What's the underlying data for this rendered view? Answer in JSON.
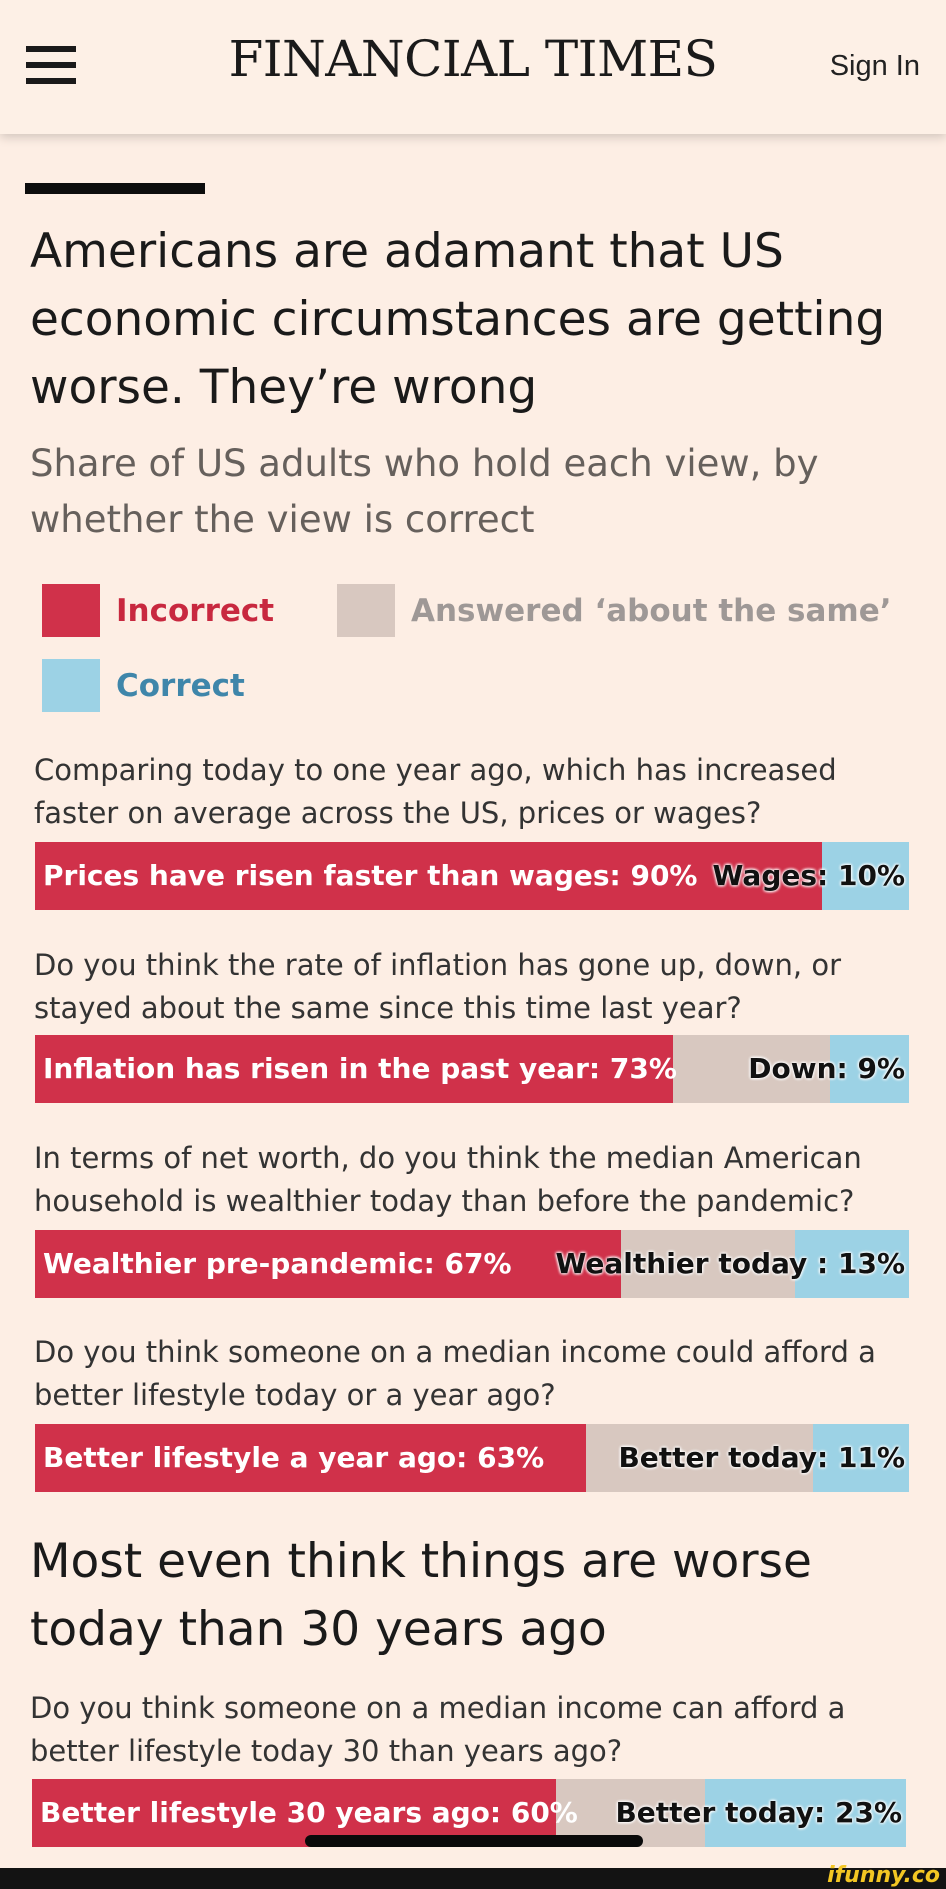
{
  "header": {
    "brand": "FINANCIAL TIMES",
    "signin_label": "Sign In",
    "menu_icon": "hamburger-menu-icon"
  },
  "article": {
    "title": "Americans are adamant that US economic circumstances are getting worse. They’re wrong",
    "subtitle": "Share of US adults who hold each view, by whether the view is correct",
    "section_title": "Most even think things are worse today than 30 years ago"
  },
  "colors": {
    "incorrect": "#d0314a",
    "about_same": "#d8c8c0",
    "correct": "#9cd2e5",
    "incorrect_text": "#c8283f",
    "same_text": "#9e9896",
    "correct_text": "#3f86aa"
  },
  "chart_data": {
    "type": "bar",
    "orientation": "horizontal-stacked",
    "unit": "%",
    "legend": {
      "placement": "top",
      "entries": [
        {
          "key": "incorrect",
          "label": "Incorrect"
        },
        {
          "key": "about_same",
          "label": "Answered ‘about the same’"
        },
        {
          "key": "correct",
          "label": "Correct"
        }
      ]
    },
    "questions": [
      {
        "question": "Comparing today to one year ago, which has increased faster on average across the US, prices or wages?",
        "incorrect": 90,
        "about_same": 0,
        "correct": 10,
        "incorrect_label": "Prices have risen faster than wages: 90%",
        "correct_label": "Wages: 10%"
      },
      {
        "question": "Do you think the rate of inflation has gone up, down, or stayed about the same since this time last year?",
        "incorrect": 73,
        "about_same": 18,
        "correct": 9,
        "incorrect_label": "Inflation has risen in the past year: 73%",
        "correct_label": "Down: 9%"
      },
      {
        "question": "In terms of net worth, do you think the median American household is wealthier today than before the pandemic?",
        "incorrect": 67,
        "about_same": 20,
        "correct": 13,
        "incorrect_label": "Wealthier pre-pandemic: 67%",
        "correct_label": "Wealthier today : 13%"
      },
      {
        "question": "Do you think someone on a median income could afford a better lifestyle today or a year ago?",
        "incorrect": 63,
        "about_same": 26,
        "correct": 11,
        "incorrect_label": "Better lifestyle a year ago: 63%",
        "correct_label": "Better today: 11%"
      },
      {
        "question": "Do you think someone on a median income can afford a better lifestyle today 30 than years ago?",
        "incorrect": 60,
        "about_same": 17,
        "correct": 23,
        "incorrect_label": "Better lifestyle 30 years ago: 60%",
        "correct_label": "Better today: 23%"
      }
    ]
  },
  "watermark": "ifunny.co"
}
